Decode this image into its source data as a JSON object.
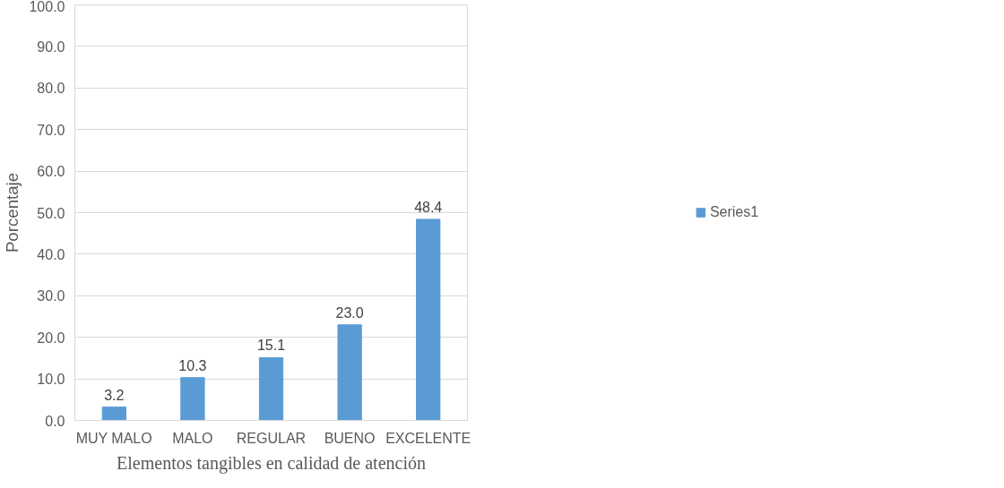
{
  "chart_data": {
    "type": "bar",
    "xlabel": "Elementos tangibles en calidad de atención",
    "ylabel": "Porcentaje",
    "categories": [
      "MUY MALO",
      "MALO",
      "REGULAR",
      "BUENO",
      "EXCELENTE"
    ],
    "series": [
      {
        "name": "Series1",
        "color": "#5b9bd5",
        "values": [
          3.2,
          10.3,
          15.1,
          23.0,
          48.4
        ]
      }
    ],
    "value_labels": [
      "3.2",
      "10.3",
      "15.1",
      "23.0",
      "48.4"
    ],
    "ylim": [
      0,
      100
    ],
    "yticks": [
      {
        "value": 0,
        "label": "0.0"
      },
      {
        "value": 10,
        "label": "10.0"
      },
      {
        "value": 20,
        "label": "20.0"
      },
      {
        "value": 30,
        "label": "30.0"
      },
      {
        "value": 40,
        "label": "40.0"
      },
      {
        "value": 50,
        "label": "50.0"
      },
      {
        "value": 60,
        "label": "60.0"
      },
      {
        "value": 70,
        "label": "70.0"
      },
      {
        "value": 80,
        "label": "80.0"
      },
      {
        "value": 90,
        "label": "90.0"
      },
      {
        "value": 100,
        "label": "100.0"
      }
    ],
    "grid": "y",
    "legend": "right"
  }
}
